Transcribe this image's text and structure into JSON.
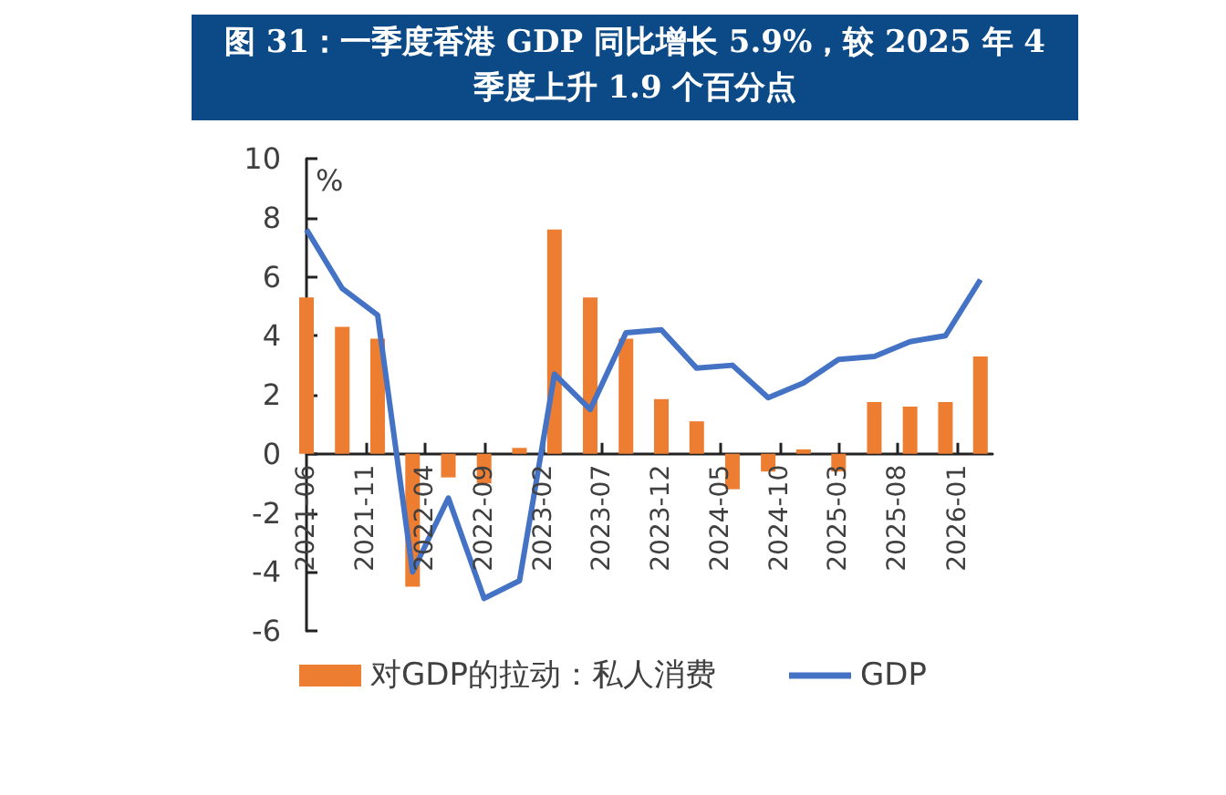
{
  "chart_data": {
    "type": "bar",
    "title": "图 31：一季度香港 GDP 同比增长 5.9%，较 2025 年 4\n季度上升 1.9 个百分点",
    "ylabel": "%",
    "x": [
      "2021-06",
      "2021-09",
      "2021-12",
      "2022-03",
      "2022-06",
      "2022-09",
      "2022-12",
      "2023-03",
      "2023-06",
      "2023-09",
      "2023-12",
      "2024-03",
      "2024-06",
      "2024-09",
      "2024-12",
      "2025-03",
      "2025-06",
      "2025-09",
      "2025-12",
      "2026-03"
    ],
    "series": [
      {
        "name": "对GDP的拉动：私人消费",
        "color": "#ed7d31",
        "values": [
          5.3,
          4.3,
          3.9,
          -4.5,
          -0.8,
          -1.0,
          0.2,
          7.6,
          5.3,
          3.9,
          1.85,
          1.1,
          -1.2,
          -0.6,
          0.15,
          -0.6,
          1.75,
          1.6,
          1.75,
          3.3
        ]
      },
      {
        "name": "GDP",
        "type": "line",
        "color": "#4472c4",
        "values": [
          7.6,
          5.6,
          4.7,
          -4.0,
          -1.5,
          -4.9,
          -4.3,
          2.7,
          1.5,
          4.1,
          4.2,
          2.9,
          3.0,
          1.9,
          2.4,
          3.2,
          3.3,
          3.8,
          4.0,
          5.9
        ]
      }
    ],
    "xlim": [
      "2021-06",
      "2026-04"
    ],
    "xticks": [
      "2021-06",
      "2021-11",
      "2022-04",
      "2022-09",
      "2023-02",
      "2023-07",
      "2023-12",
      "2024-05",
      "2024-10",
      "2025-03",
      "2025-08",
      "2026-01"
    ],
    "ylim": [
      -6,
      10
    ],
    "yticks": [
      -6,
      -4,
      -2,
      0,
      2,
      4,
      6,
      8,
      10
    ],
    "grid": false,
    "legend": "bottom",
    "marker": "none",
    "line_style": "solid"
  }
}
